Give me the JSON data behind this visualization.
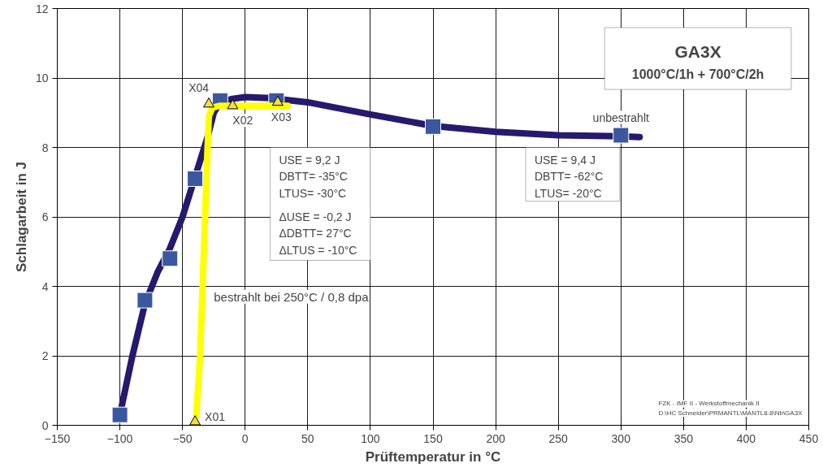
{
  "chart_data": {
    "type": "line",
    "title": "GA3X",
    "subtitle": "1000°C/1h + 700°C/2h",
    "xlabel": "Prüftemperatur in °C",
    "ylabel": "Schlagarbeit in J",
    "xlim": [
      -150,
      450
    ],
    "ylim": [
      0,
      12
    ],
    "xticks": [
      -150,
      -100,
      -50,
      0,
      50,
      100,
      150,
      200,
      250,
      300,
      350,
      400,
      450
    ],
    "yticks": [
      0,
      2,
      4,
      6,
      8,
      10,
      12
    ],
    "grid": true,
    "series": [
      {
        "color": "#241a6e",
        "x": [
          -100,
          -90,
          -80,
          -70,
          -60,
          -50,
          -30,
          -25,
          -20,
          -10,
          0,
          20,
          50,
          100,
          150,
          200,
          250,
          300,
          315
        ],
        "values": [
          0.3,
          2.0,
          3.5,
          4.4,
          5.1,
          6.0,
          8.3,
          9.0,
          9.3,
          9.4,
          9.45,
          9.42,
          9.3,
          8.95,
          8.62,
          8.45,
          8.35,
          8.32,
          8.3
        ]
      },
      {
        "type": "scatter",
        "marker": "square",
        "color": "#3a57a0",
        "x": [
          -100,
          -80,
          -60,
          -40,
          -20,
          25,
          150,
          300
        ],
        "values": [
          0.3,
          3.6,
          4.8,
          7.1,
          9.35,
          9.35,
          8.6,
          8.35
        ]
      },
      {
        "color": "#ffff00",
        "x": [
          -39,
          -36,
          -33,
          -30,
          -29,
          -26,
          -20,
          0,
          34
        ],
        "values": [
          0.3,
          2.0,
          5.0,
          8.0,
          8.9,
          9.15,
          9.2,
          9.2,
          9.2
        ]
      },
      {
        "type": "scatter",
        "marker": "triangle",
        "color": "#f0e040",
        "x": [
          -40,
          -29,
          -10,
          26
        ],
        "values": [
          0.1,
          9.25,
          9.2,
          9.3
        ]
      }
    ],
    "annotations": [
      {
        "text": "X01",
        "x": -40,
        "y": 0.1
      },
      {
        "text": "X04",
        "x": -29,
        "y": 9.25
      },
      {
        "text": "X02",
        "x": -10,
        "y": 9.2
      },
      {
        "text": "X03",
        "x": 26,
        "y": 9.3
      },
      {
        "text": "unbestrahlt",
        "x": 300,
        "y": 8.35
      },
      "bestrahlt bei 250°C / 0,8 dpa",
      "USE = 9,2 J",
      "DBTT= -35°C",
      "LTUS= -30°C",
      "ΔUSE = -0,2 J",
      "ΔDBTT= 27°C",
      "ΔLTUS = -10°C",
      "USE = 9,4 J",
      "DBTT= -62°C",
      "LTUS= -20°C",
      "FZK - IMF II - Werkstoffmechanik II",
      "D:\\HC Schneider\\PRMANTL\\MANTL8.8\\Nb\\GA3X"
    ]
  }
}
